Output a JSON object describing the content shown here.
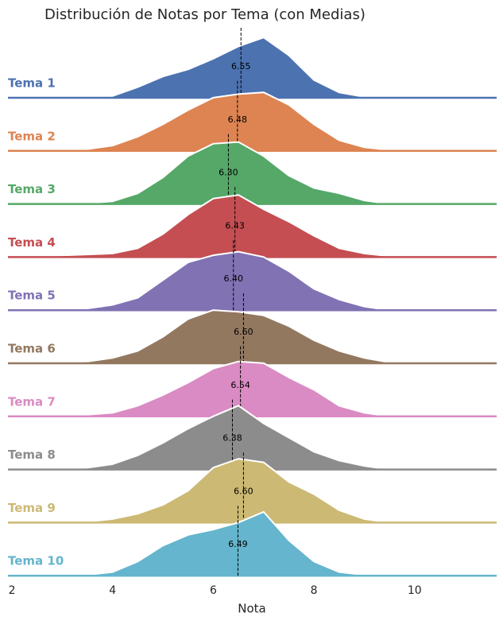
{
  "chart_data": {
    "type": "ridgeline",
    "title": "Distribución de Notas por Tema (con Medias)",
    "x_label": "Nota",
    "xlim": [
      1.92,
      11.63
    ],
    "xticks": [
      2,
      4,
      6,
      8,
      10
    ],
    "x": [
      2,
      2.5,
      3,
      3.5,
      4,
      4.5,
      5,
      5.5,
      6,
      6.5,
      7,
      7.5,
      8,
      8.5,
      9,
      9.5,
      10,
      10.5,
      11,
      11.5
    ],
    "series": [
      {
        "name": "Tema 1",
        "color": "#4c72b0",
        "mean": 6.55,
        "mean_label": "6.55",
        "values": [
          0,
          0,
          0,
          0,
          0.01,
          0.06,
          0.12,
          0.16,
          0.22,
          0.29,
          0.34,
          0.24,
          0.1,
          0.03,
          0.005,
          0,
          0,
          0,
          0,
          0
        ]
      },
      {
        "name": "Tema 2",
        "color": "#dd8452",
        "mean": 6.48,
        "mean_label": "6.48",
        "values": [
          0,
          0,
          0,
          0.01,
          0.03,
          0.08,
          0.15,
          0.23,
          0.3,
          0.32,
          0.33,
          0.26,
          0.15,
          0.06,
          0.02,
          0.005,
          0,
          0,
          0,
          0
        ]
      },
      {
        "name": "Tema 3",
        "color": "#55a868",
        "mean": 6.3,
        "mean_label": "6.30",
        "values": [
          0,
          0,
          0,
          0.005,
          0.015,
          0.06,
          0.15,
          0.27,
          0.34,
          0.35,
          0.27,
          0.16,
          0.09,
          0.06,
          0.02,
          0,
          0,
          0,
          0,
          0
        ]
      },
      {
        "name": "Tema 4",
        "color": "#c44e52",
        "mean": 6.43,
        "mean_label": "6.43",
        "values": [
          0,
          0.005,
          0.01,
          0.015,
          0.02,
          0.05,
          0.13,
          0.24,
          0.33,
          0.35,
          0.27,
          0.2,
          0.12,
          0.05,
          0.02,
          0.005,
          0,
          0,
          0,
          0
        ]
      },
      {
        "name": "Tema 5",
        "color": "#8172b3",
        "mean": 6.4,
        "mean_label": "6.40",
        "values": [
          0,
          0,
          0.005,
          0.01,
          0.03,
          0.07,
          0.17,
          0.27,
          0.31,
          0.33,
          0.3,
          0.22,
          0.12,
          0.06,
          0.02,
          0,
          0,
          0,
          0,
          0
        ]
      },
      {
        "name": "Tema 6",
        "color": "#937860",
        "mean": 6.6,
        "mean_label": "6.60",
        "values": [
          0,
          0,
          0.005,
          0.01,
          0.03,
          0.07,
          0.15,
          0.25,
          0.3,
          0.29,
          0.27,
          0.21,
          0.13,
          0.07,
          0.03,
          0.005,
          0,
          0,
          0,
          0
        ]
      },
      {
        "name": "Tema 7",
        "color": "#da8bc3",
        "mean": 6.54,
        "mean_label": "6.54",
        "values": [
          0,
          0,
          0,
          0.01,
          0.02,
          0.06,
          0.12,
          0.19,
          0.27,
          0.31,
          0.3,
          0.22,
          0.15,
          0.06,
          0.02,
          0,
          0,
          0,
          0,
          0
        ]
      },
      {
        "name": "Tema 8",
        "color": "#8c8c8c",
        "mean": 6.38,
        "mean_label": "6.38",
        "values": [
          0,
          0,
          0.005,
          0.01,
          0.03,
          0.08,
          0.15,
          0.23,
          0.3,
          0.36,
          0.26,
          0.18,
          0.1,
          0.05,
          0.02,
          0,
          0,
          0,
          0,
          0
        ]
      },
      {
        "name": "Tema 9",
        "color": "#ccb974",
        "mean": 6.6,
        "mean_label": "6.60",
        "values": [
          0,
          0,
          0,
          0.005,
          0.02,
          0.05,
          0.1,
          0.18,
          0.31,
          0.36,
          0.34,
          0.23,
          0.16,
          0.07,
          0.02,
          0,
          0,
          0,
          0,
          0
        ]
      },
      {
        "name": "Tema 10",
        "color": "#64b5cd",
        "mean": 6.49,
        "mean_label": "6.49",
        "values": [
          0,
          0,
          0,
          0.005,
          0.02,
          0.08,
          0.17,
          0.23,
          0.26,
          0.3,
          0.36,
          0.2,
          0.08,
          0.02,
          0.005,
          0,
          0,
          0,
          0,
          0
        ]
      }
    ]
  }
}
